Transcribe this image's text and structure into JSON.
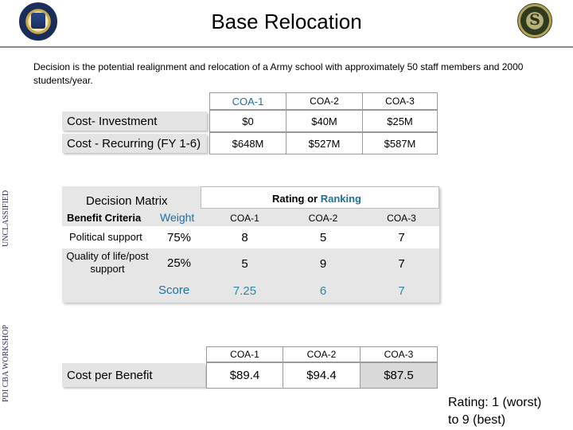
{
  "header": {
    "title": "Base Relocation",
    "side_text_top": "UNCLASSIFIED",
    "side_text_bottom": "PDI CBA WORKSHOP",
    "left_emblem_icon": "army-seal-icon",
    "right_emblem_icon": "workshop-seal-icon",
    "right_emblem_glyph": "S"
  },
  "description": "Decision is the potential realignment and relocation of a Army school with approximately 50 staff members and 2000 students/year.",
  "cost_table": {
    "columns": [
      "COA-1",
      "COA-2",
      "COA-3"
    ],
    "rows": [
      {
        "label": "Cost- Investment",
        "values": [
          "$0",
          "$40M",
          "$25M"
        ]
      },
      {
        "label": "Cost - Recurring (FY 1-6)",
        "values": [
          "$648M",
          "$527M",
          "$587M"
        ]
      }
    ]
  },
  "decision_matrix": {
    "title": "Decision Matrix",
    "rating_label": "Rating",
    "rating_or": "or",
    "ranking_label": "Ranking",
    "benefit_header": "Benefit Criteria",
    "weight_header": "Weight",
    "columns": [
      "COA-1",
      "COA-2",
      "COA-3"
    ],
    "rows": [
      {
        "label": "Political support",
        "weight": "75%",
        "values": [
          "8",
          "5",
          "7"
        ]
      },
      {
        "label": "Quality of life/post support",
        "weight": "25%",
        "values": [
          "5",
          "9",
          "7"
        ]
      }
    ],
    "score_label": "Score",
    "scores": [
      "7.25",
      "6",
      "7"
    ]
  },
  "cost_per_benefit": {
    "label": "Cost per Benefit",
    "columns": [
      "COA-1",
      "COA-2",
      "COA-3"
    ],
    "values": [
      "$89.4",
      "$94.4",
      "$87.5"
    ]
  },
  "rating_note": {
    "line1": "Rating: 1 (worst)",
    "line2": "to 9 (best)"
  },
  "colors": {
    "ranking_text": "#1f6f9f",
    "score_value": "#1f6f9f",
    "side_text": "#3a2a66"
  }
}
